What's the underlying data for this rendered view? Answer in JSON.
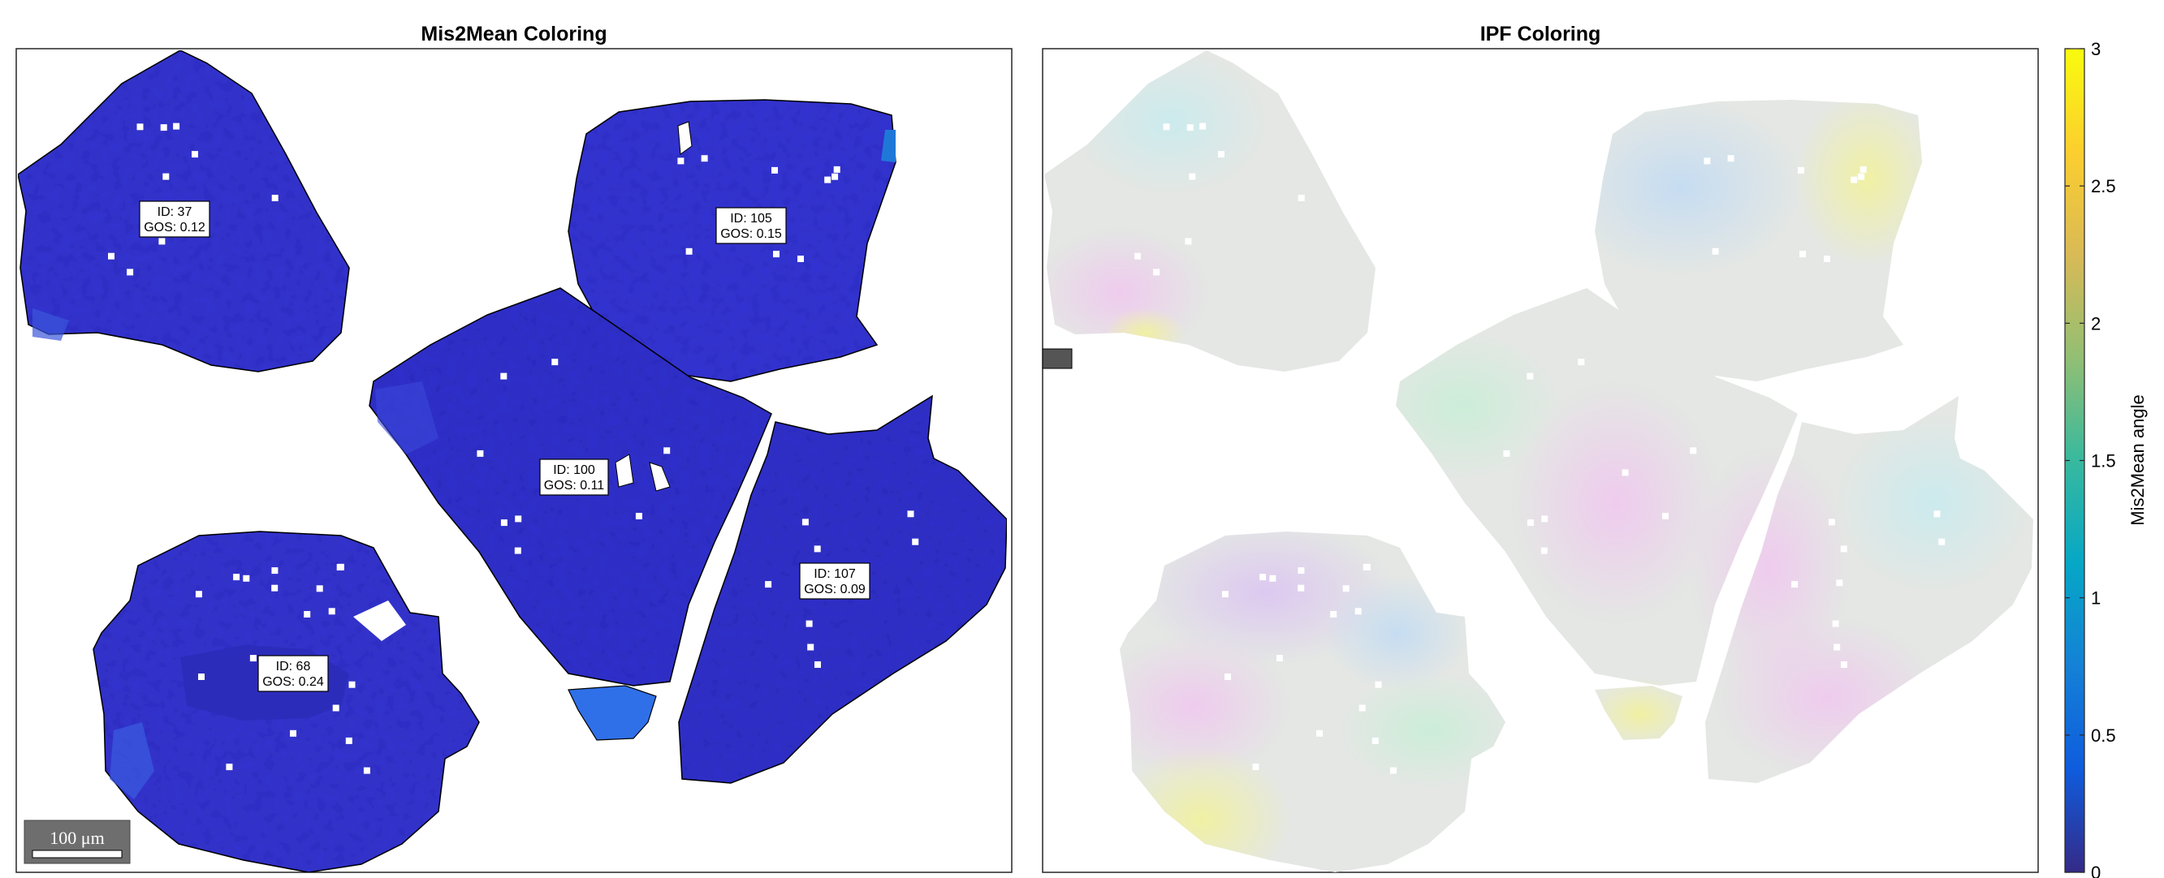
{
  "chart_data": [
    {
      "type": "map",
      "title": "Mis2Mean Coloring",
      "color_by": "Mis2Mean angle",
      "grains": [
        {
          "id": 37,
          "gos": 0.12,
          "id_label": "ID: 37",
          "gos_label": "GOS: 0.12"
        },
        {
          "id": 105,
          "gos": 0.15,
          "id_label": "ID: 105",
          "gos_label": "GOS: 0.15"
        },
        {
          "id": 100,
          "gos": 0.11,
          "id_label": "ID: 100",
          "gos_label": "GOS: 0.11"
        },
        {
          "id": 107,
          "gos": 0.09,
          "id_label": "ID: 107",
          "gos_label": "GOS: 0.09"
        },
        {
          "id": 68,
          "gos": 0.24,
          "id_label": "ID: 68",
          "gos_label": "GOS: 0.24"
        }
      ],
      "scalebar": {
        "value": 100,
        "unit": "μm",
        "label": "100 μm"
      }
    },
    {
      "type": "map",
      "title": "IPF Coloring",
      "color_by": "IPF orientation (pale)"
    }
  ],
  "colorbar": {
    "label": "Mis2Mean angle",
    "ticks": [
      0,
      0.5,
      1,
      1.5,
      2,
      2.5,
      3
    ],
    "tick_labels": [
      "0",
      "0.5",
      "1",
      "1.5",
      "2",
      "2.5",
      "3"
    ],
    "range": [
      0,
      3
    ],
    "colormap": "parula",
    "stops": [
      "#352a87",
      "#0f5cdd",
      "#1481d6",
      "#06a7c6",
      "#38b99e",
      "#92bf73",
      "#d9ba56",
      "#fcce2e",
      "#f9fb0e"
    ]
  },
  "colors": {
    "grain_fill": "#3535d4",
    "grain_fill_dark": "#2d2fbf",
    "grain_highlight": "#2f6ee8",
    "ipf_base": "#e4e7e4"
  }
}
